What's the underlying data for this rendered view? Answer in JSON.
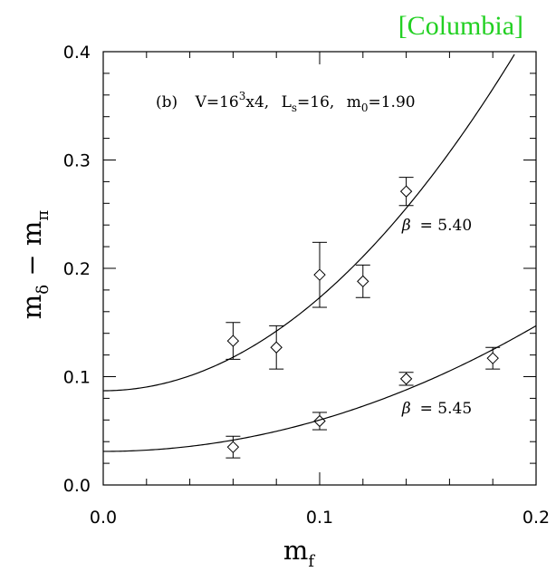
{
  "watermark": {
    "text": "[Columbia]",
    "color": "#22d022"
  },
  "chart_data": {
    "type": "scatter",
    "grid": false,
    "annotation": {
      "panel": "(b)",
      "volume_pre": "V=16",
      "volume_exp": "3",
      "volume_post": "x4,",
      "ls_pre": "L",
      "ls_sub": "s",
      "ls_post": "=16,",
      "m0_pre": "m",
      "m0_sub": "0",
      "m0_post": "=1.90"
    },
    "xlabel": {
      "main": "m",
      "sub": "f"
    },
    "ylabel": {
      "main1": "m",
      "sub1": "δ",
      "mid": " − ",
      "main2": "m",
      "sub2": "π"
    },
    "xlim": [
      0.0,
      0.2
    ],
    "ylim": [
      0.0,
      0.4
    ],
    "x_ticks": [
      {
        "value": 0.0,
        "label": "0.0"
      },
      {
        "value": 0.1,
        "label": "0.1"
      },
      {
        "value": 0.2,
        "label": "0.2"
      }
    ],
    "y_ticks": [
      {
        "value": 0.0,
        "label": "0.0"
      },
      {
        "value": 0.1,
        "label": "0.1"
      },
      {
        "value": 0.2,
        "label": "0.2"
      },
      {
        "value": 0.3,
        "label": "0.3"
      },
      {
        "value": 0.4,
        "label": "0.4"
      }
    ],
    "x_minor_step": 0.02,
    "y_minor_step": 0.02,
    "series": [
      {
        "name": "β = 5.40",
        "label_beta": "β",
        "label_value": "=  5.40",
        "label_at": {
          "x": 0.138,
          "y": 0.235
        },
        "points": [
          {
            "x": 0.06,
            "y": 0.133,
            "err": 0.017
          },
          {
            "x": 0.08,
            "y": 0.127,
            "err": 0.02
          },
          {
            "x": 0.1,
            "y": 0.194,
            "err": 0.03
          },
          {
            "x": 0.12,
            "y": 0.188,
            "err": 0.015
          },
          {
            "x": 0.14,
            "y": 0.271,
            "err": 0.013
          }
        ],
        "fit": {
          "a": 0.087,
          "b": 0.0,
          "c": 8.6
        }
      },
      {
        "name": "β = 5.45",
        "label_beta": "β",
        "label_value": "=  5.45",
        "label_at": {
          "x": 0.138,
          "y": 0.066
        },
        "points": [
          {
            "x": 0.06,
            "y": 0.035,
            "err": 0.01
          },
          {
            "x": 0.1,
            "y": 0.059,
            "err": 0.008
          },
          {
            "x": 0.14,
            "y": 0.098,
            "err": 0.006
          },
          {
            "x": 0.18,
            "y": 0.117,
            "err": 0.01
          }
        ],
        "fit": {
          "a": 0.031,
          "b": 0.0,
          "c": 2.9
        }
      }
    ]
  }
}
